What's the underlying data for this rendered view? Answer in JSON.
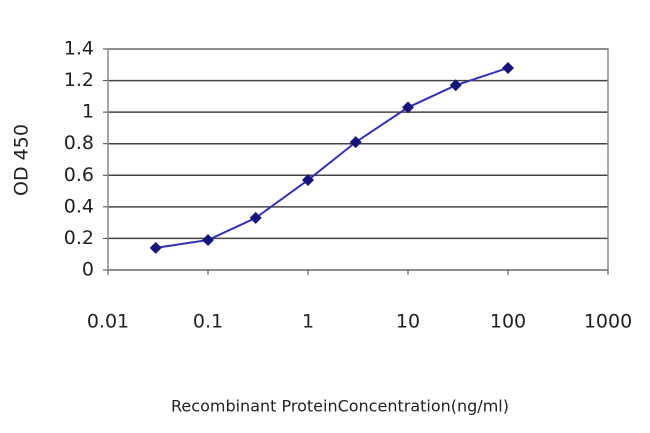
{
  "chart_data": {
    "type": "line",
    "xlabel": "Recombinant ProteinConcentration(ng/ml)",
    "ylabel": "OD 450",
    "x": [
      0.03,
      0.1,
      0.3,
      1,
      3,
      10,
      30,
      100
    ],
    "values": [
      0.14,
      0.19,
      0.33,
      0.57,
      0.81,
      1.03,
      1.17,
      1.28
    ],
    "color": "#3333b0",
    "marker_color": "#15157a",
    "xscale": "log",
    "xlim": [
      0.01,
      1000
    ],
    "xticks": [
      0.01,
      0.1,
      1,
      10,
      100,
      1000
    ],
    "ylim": [
      0,
      1.4
    ],
    "yticks": [
      0,
      0.2,
      0.4,
      0.6,
      0.8,
      1,
      1.2,
      1.4
    ],
    "grid": true
  }
}
